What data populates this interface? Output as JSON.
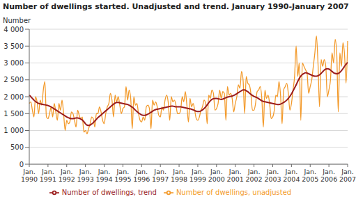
{
  "chart_data": {
    "type": "line",
    "title": "Number of dwellings started. Unadjusted and trend. January 1990-January 2007",
    "y_label": "Number",
    "categories": [
      "Jan. 1990",
      null,
      null,
      null,
      null,
      null,
      null,
      null,
      null,
      null,
      null,
      null,
      "Jan. 1991",
      null,
      null,
      null,
      null,
      null,
      null,
      null,
      null,
      null,
      null,
      null,
      "Jan. 1992",
      null,
      null,
      null,
      null,
      null,
      null,
      null,
      null,
      null,
      null,
      null,
      "Jan. 1993",
      null,
      null,
      null,
      null,
      null,
      null,
      null,
      null,
      null,
      null,
      null,
      "Jan. 1994",
      null,
      null,
      null,
      null,
      null,
      null,
      null,
      null,
      null,
      null,
      null,
      "Jan. 1995",
      null,
      null,
      null,
      null,
      null,
      null,
      null,
      null,
      null,
      null,
      null,
      "Jan. 1996",
      null,
      null,
      null,
      null,
      null,
      null,
      null,
      null,
      null,
      null,
      null,
      "Jan. 1997",
      null,
      null,
      null,
      null,
      null,
      null,
      null,
      null,
      null,
      null,
      null,
      "Jan. 1998",
      null,
      null,
      null,
      null,
      null,
      null,
      null,
      null,
      null,
      null,
      null,
      "Jan. 1999",
      null,
      null,
      null,
      null,
      null,
      null,
      null,
      null,
      null,
      null,
      null,
      "Jan. 2000",
      null,
      null,
      null,
      null,
      null,
      null,
      null,
      null,
      null,
      null,
      null,
      "Jan. 2001",
      null,
      null,
      null,
      null,
      null,
      null,
      null,
      null,
      null,
      null,
      null,
      "Jan. 2002",
      null,
      null,
      null,
      null,
      null,
      null,
      null,
      null,
      null,
      null,
      null,
      "Jan. 2003",
      null,
      null,
      null,
      null,
      null,
      null,
      null,
      null,
      null,
      null,
      null,
      "Jan. 2004",
      null,
      null,
      null,
      null,
      null,
      null,
      null,
      null,
      null,
      null,
      null,
      "Jan. 2005",
      null,
      null,
      null,
      null,
      null,
      null,
      null,
      null,
      null,
      null,
      null,
      "Jan. 2006",
      null,
      null,
      null,
      null,
      null,
      null,
      null,
      null,
      null,
      null,
      null,
      "Jan. 2007"
    ],
    "series": [
      {
        "name": "Number of dwellings, unadjusted",
        "color": "#f39a2b",
        "values": [
          1800,
          1850,
          1600,
          1400,
          2000,
          1850,
          1500,
          1900,
          1750,
          2200,
          2450,
          1400,
          1350,
          1500,
          1700,
          1400,
          1800,
          1550,
          1300,
          1800,
          1600,
          1900,
          1500,
          1000,
          1300,
          1200,
          1250,
          1550,
          1500,
          1300,
          1100,
          1600,
          1450,
          1350,
          1400,
          950,
          1000,
          900,
          1050,
          1200,
          1400,
          1350,
          1100,
          1500,
          1500,
          1700,
          1550,
          1300,
          1200,
          1500,
          1700,
          1800,
          2100,
          1900,
          1400,
          2050,
          1850,
          2000,
          1750,
          1500,
          1650,
          1700,
          2300,
          1900,
          2200,
          1950,
          1050,
          2000,
          1750,
          1800,
          1500,
          1300,
          1250,
          1400,
          1300,
          1700,
          1750,
          1650,
          1050,
          1900,
          1750,
          1850,
          1700,
          1450,
          1400,
          1700,
          1600,
          1900,
          2050,
          1850,
          1300,
          2000,
          1850,
          1900,
          1750,
          1500,
          1500,
          1600,
          2000,
          1850,
          2150,
          1750,
          1250,
          1950,
          1700,
          1800,
          1600,
          1350,
          1300,
          1400,
          1600,
          1700,
          1900,
          1800,
          1200,
          2050,
          1950,
          2200,
          2100,
          1600,
          1650,
          1800,
          2200,
          1950,
          2150,
          2100,
          1300,
          2300,
          2050,
          2100,
          1950,
          1550,
          1800,
          2000,
          2350,
          2250,
          2750,
          2500,
          1500,
          2600,
          2400,
          2350,
          2100,
          1600,
          1600,
          1800,
          2150,
          2200,
          2300,
          1950,
          1100,
          2200,
          1950,
          2050,
          1800,
          1350,
          1400,
          1600,
          2050,
          2000,
          2450,
          2050,
          1200,
          2200,
          2300,
          2400,
          2100,
          1600,
          1800,
          2200,
          2600,
          3500,
          2600,
          3000,
          1300,
          3000,
          2900,
          2800,
          2700,
          2100,
          2300,
          2500,
          2900,
          3300,
          3800,
          3000,
          1700,
          3100,
          2900,
          3100,
          2900,
          2000,
          2200,
          2500,
          3300,
          3000,
          3700,
          3300,
          1550,
          3300,
          2900,
          3600,
          3250,
          2400,
          3650
        ]
      },
      {
        "name": "Number of dwellings, trend",
        "color": "#9b1c1c",
        "values": [
          2050,
          2000,
          1950,
          1900,
          1860,
          1830,
          1800,
          1790,
          1780,
          1770,
          1760,
          1750,
          1740,
          1720,
          1700,
          1670,
          1640,
          1610,
          1580,
          1550,
          1520,
          1490,
          1460,
          1430,
          1400,
          1380,
          1360,
          1350,
          1350,
          1360,
          1370,
          1370,
          1360,
          1340,
          1310,
          1260,
          1200,
          1160,
          1150,
          1160,
          1190,
          1230,
          1280,
          1330,
          1380,
          1420,
          1460,
          1500,
          1540,
          1580,
          1620,
          1660,
          1700,
          1740,
          1780,
          1810,
          1830,
          1830,
          1820,
          1810,
          1800,
          1790,
          1780,
          1770,
          1750,
          1720,
          1690,
          1650,
          1600,
          1560,
          1520,
          1490,
          1460,
          1450,
          1450,
          1460,
          1480,
          1510,
          1540,
          1570,
          1600,
          1620,
          1630,
          1640,
          1650,
          1660,
          1670,
          1680,
          1690,
          1700,
          1710,
          1720,
          1720,
          1710,
          1700,
          1700,
          1700,
          1700,
          1690,
          1680,
          1670,
          1660,
          1650,
          1640,
          1630,
          1610,
          1590,
          1570,
          1560,
          1560,
          1580,
          1610,
          1650,
          1700,
          1760,
          1820,
          1880,
          1920,
          1940,
          1950,
          1950,
          1940,
          1930,
          1920,
          1930,
          1950,
          1970,
          1990,
          2000,
          2010,
          2020,
          2040,
          2060,
          2090,
          2120,
          2150,
          2180,
          2200,
          2200,
          2180,
          2150,
          2110,
          2070,
          2040,
          2010,
          1990,
          1970,
          1940,
          1910,
          1880,
          1860,
          1850,
          1840,
          1830,
          1820,
          1810,
          1800,
          1790,
          1780,
          1770,
          1770,
          1780,
          1800,
          1830,
          1860,
          1900,
          1950,
          2010,
          2080,
          2170,
          2260,
          2350,
          2450,
          2540,
          2610,
          2660,
          2690,
          2710,
          2700,
          2680,
          2660,
          2640,
          2620,
          2610,
          2610,
          2620,
          2650,
          2690,
          2740,
          2790,
          2820,
          2830,
          2820,
          2790,
          2750,
          2710,
          2690,
          2680,
          2690,
          2720,
          2770,
          2830,
          2900,
          2960,
          3020
        ]
      }
    ],
    "ylim": [
      0,
      4000
    ],
    "yticks": [
      0,
      500,
      {
        "value": 1000,
        "label": "1 000"
      },
      {
        "value": 1500,
        "label": "1 500"
      },
      {
        "value": 2000,
        "label": "2 000"
      },
      {
        "value": 2500,
        "label": "2 500"
      },
      {
        "value": 3000,
        "label": "3 000"
      },
      {
        "value": 3500,
        "label": "3 500"
      },
      {
        "value": 4000,
        "label": "4 000"
      }
    ],
    "grid": true,
    "legend": "bottom"
  }
}
